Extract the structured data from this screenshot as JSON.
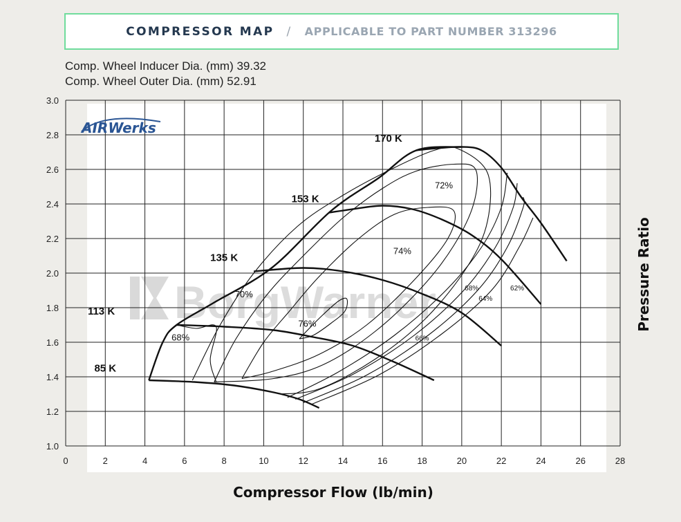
{
  "header": {
    "title": "COMPRESSOR MAP",
    "separator": "/",
    "subtitle": "APPLICABLE TO PART NUMBER 313296"
  },
  "specs": [
    "Comp. Wheel Inducer Dia. (mm) 39.32",
    "Comp. Wheel Outer Dia. (mm) 52.91"
  ],
  "logo": {
    "text": "AIRWerks"
  },
  "watermark": {
    "text": "BorgWarner"
  },
  "chart_data": {
    "type": "line",
    "xlabel": "Compressor Flow (lb/min)",
    "ylabel": "Pressure Ratio",
    "xlim": [
      0,
      28
    ],
    "ylim": [
      1.0,
      3.0
    ],
    "x_ticks": [
      0,
      2,
      4,
      6,
      8,
      10,
      12,
      14,
      16,
      18,
      20,
      22,
      24,
      26,
      28
    ],
    "x_tick_labels": [
      "0",
      "2",
      "4",
      "6",
      "8",
      "10",
      "12",
      "14",
      "16",
      "18",
      "20",
      "22",
      "24",
      "26",
      "28"
    ],
    "y_ticks": [
      1.0,
      1.2,
      1.4,
      1.6,
      1.8,
      2.0,
      2.2,
      2.4,
      2.6,
      2.8,
      3.0
    ],
    "y_tick_labels": [
      "1.0",
      "1.2",
      "1.4",
      "1.6",
      "1.8",
      "2.0",
      "2.2",
      "2.4",
      "2.6",
      "2.8",
      "3.0"
    ],
    "grid": true,
    "surge_line": {
      "points": [
        [
          4.2,
          1.38
        ],
        [
          4.9,
          1.6
        ],
        [
          5.6,
          1.7
        ],
        [
          7.5,
          1.83
        ],
        [
          10.4,
          2.03
        ],
        [
          13.4,
          2.36
        ],
        [
          15.8,
          2.55
        ],
        [
          17.7,
          2.71
        ],
        [
          20.0,
          2.73
        ]
      ]
    },
    "speed_lines": [
      {
        "label": "85 K",
        "label_pos": [
          2.0,
          1.43
        ],
        "points": [
          [
            4.2,
            1.38
          ],
          [
            6.5,
            1.37
          ],
          [
            8.5,
            1.35
          ],
          [
            10.5,
            1.31
          ],
          [
            11.8,
            1.27
          ],
          [
            12.8,
            1.22
          ]
        ]
      },
      {
        "label": "113 K",
        "label_pos": [
          1.8,
          1.76
        ],
        "points": [
          [
            5.6,
            1.7
          ],
          [
            8.0,
            1.69
          ],
          [
            10.5,
            1.67
          ],
          [
            12.5,
            1.63
          ],
          [
            14.5,
            1.58
          ],
          [
            16.5,
            1.49
          ],
          [
            18.6,
            1.38
          ]
        ]
      },
      {
        "label": "135 K",
        "label_pos": [
          8.0,
          2.07
        ],
        "points": [
          [
            9.5,
            2.01
          ],
          [
            12.0,
            2.03
          ],
          [
            14.0,
            2.01
          ],
          [
            16.0,
            1.96
          ],
          [
            18.0,
            1.88
          ],
          [
            20.0,
            1.77
          ],
          [
            22.0,
            1.58
          ]
        ]
      },
      {
        "label": "153 K",
        "label_pos": [
          12.1,
          2.41
        ],
        "points": [
          [
            13.3,
            2.35
          ],
          [
            14.5,
            2.37
          ],
          [
            16.0,
            2.39
          ],
          [
            17.5,
            2.37
          ],
          [
            19.0,
            2.31
          ],
          [
            20.5,
            2.22
          ],
          [
            22.0,
            2.08
          ],
          [
            24.0,
            1.82
          ]
        ]
      },
      {
        "label": "170 K",
        "label_pos": [
          16.3,
          2.76
        ],
        "points": [
          [
            17.7,
            2.71
          ],
          [
            18.5,
            2.72
          ],
          [
            20.0,
            2.73
          ],
          [
            21.0,
            2.71
          ],
          [
            22.0,
            2.61
          ],
          [
            23.0,
            2.44
          ],
          [
            24.0,
            2.29
          ],
          [
            25.3,
            2.07
          ]
        ]
      }
    ],
    "efficiency_islands": [
      {
        "label": "76%",
        "label_pos": [
          12.2,
          1.69
        ],
        "points": [
          [
            11.8,
            1.62
          ],
          [
            12.3,
            1.68
          ],
          [
            13.0,
            1.76
          ],
          [
            13.8,
            1.84
          ],
          [
            14.2,
            1.85
          ],
          [
            14.1,
            1.78
          ],
          [
            13.4,
            1.71
          ],
          [
            12.5,
            1.64
          ],
          [
            11.8,
            1.62
          ]
        ]
      },
      {
        "label": "74%",
        "label_pos": [
          17.0,
          2.11
        ],
        "points": [
          [
            8.9,
            1.39
          ],
          [
            10.0,
            1.6
          ],
          [
            11.3,
            1.78
          ],
          [
            12.8,
            1.98
          ],
          [
            14.8,
            2.2
          ],
          [
            16.6,
            2.34
          ],
          [
            18.3,
            2.38
          ],
          [
            19.6,
            2.36
          ],
          [
            19.3,
            2.2
          ],
          [
            17.6,
            1.96
          ],
          [
            15.2,
            1.7
          ],
          [
            12.8,
            1.53
          ],
          [
            10.4,
            1.43
          ],
          [
            8.9,
            1.39
          ]
        ]
      },
      {
        "label": "72%",
        "label_pos": [
          19.1,
          2.49
        ],
        "points": [
          [
            7.5,
            1.37
          ],
          [
            8.6,
            1.62
          ],
          [
            10.2,
            1.88
          ],
          [
            12.0,
            2.1
          ],
          [
            14.0,
            2.32
          ],
          [
            16.0,
            2.49
          ],
          [
            17.7,
            2.59
          ],
          [
            19.6,
            2.63
          ],
          [
            20.7,
            2.6
          ],
          [
            20.6,
            2.4
          ],
          [
            19.6,
            2.16
          ],
          [
            18.0,
            1.92
          ],
          [
            15.6,
            1.66
          ],
          [
            13.0,
            1.47
          ],
          [
            10.5,
            1.39
          ],
          [
            7.5,
            1.37
          ]
        ]
      },
      {
        "label": "70%",
        "label_pos": [
          9.0,
          1.86
        ],
        "points": [
          [
            6.4,
            1.38
          ],
          [
            7.8,
            1.7
          ],
          [
            9.5,
            2.0
          ],
          [
            11.7,
            2.27
          ],
          [
            14.0,
            2.45
          ],
          [
            16.6,
            2.61
          ],
          [
            18.6,
            2.71
          ],
          [
            19.8,
            2.72
          ],
          [
            21.3,
            2.58
          ],
          [
            21.3,
            2.3
          ],
          [
            20.3,
            2.04
          ],
          [
            18.2,
            1.74
          ],
          [
            15.6,
            1.5
          ],
          [
            12.8,
            1.33
          ],
          [
            10.8,
            1.3
          ]
        ]
      },
      {
        "label": "68%",
        "label_pos": [
          5.8,
          1.61
        ],
        "points": [
          [
            5.6,
            1.7
          ],
          [
            6.6,
            1.68
          ],
          [
            7.6,
            1.69
          ],
          [
            7.3,
            1.5
          ],
          [
            7.6,
            1.37
          ]
        ]
      },
      {
        "label": "68%",
        "label_pos": [
          20.5,
          1.9
        ],
        "points": [
          [
            11.2,
            1.28
          ],
          [
            13.8,
            1.43
          ],
          [
            16.6,
            1.64
          ],
          [
            19.2,
            1.9
          ],
          [
            21.0,
            2.15
          ],
          [
            22.0,
            2.38
          ],
          [
            22.3,
            2.58
          ]
        ]
      },
      {
        "label": "66%",
        "label_pos": [
          18.0,
          1.61
        ],
        "points": [
          [
            11.6,
            1.27
          ],
          [
            14.6,
            1.42
          ],
          [
            17.6,
            1.64
          ],
          [
            20.1,
            1.9
          ],
          [
            21.7,
            2.15
          ],
          [
            22.6,
            2.38
          ],
          [
            22.8,
            2.52
          ]
        ]
      },
      {
        "label": "64%",
        "label_pos": [
          21.2,
          1.84
        ],
        "points": [
          [
            12.0,
            1.25
          ],
          [
            15.2,
            1.41
          ],
          [
            18.3,
            1.64
          ],
          [
            20.8,
            1.9
          ],
          [
            22.3,
            2.15
          ],
          [
            23.1,
            2.38
          ],
          [
            23.1,
            2.44
          ]
        ]
      },
      {
        "label": "62%",
        "label_pos": [
          22.8,
          1.9
        ],
        "points": [
          [
            12.4,
            1.24
          ],
          [
            15.8,
            1.41
          ],
          [
            18.9,
            1.64
          ],
          [
            21.5,
            1.9
          ],
          [
            22.9,
            2.15
          ],
          [
            23.6,
            2.32
          ]
        ]
      }
    ]
  }
}
